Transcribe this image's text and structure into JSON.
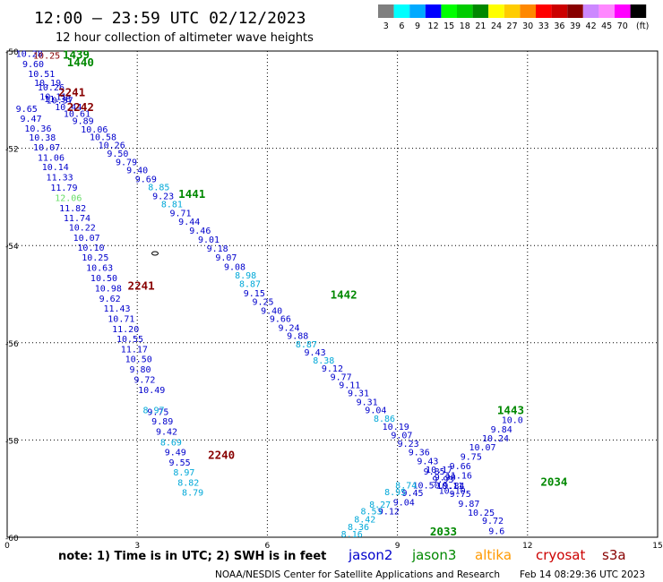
{
  "title": "12:00 – 23:59 UTC 02/12/2023",
  "subtitle": "12 hour collection of altimeter wave heights",
  "legend": {
    "unit": "(ft)",
    "items": [
      {
        "label": "3",
        "color": "#7f7f7f"
      },
      {
        "label": "6",
        "color": "#00ffff"
      },
      {
        "label": "9",
        "color": "#00aaff"
      },
      {
        "label": "12",
        "color": "#0000ff"
      },
      {
        "label": "15",
        "color": "#00ff00"
      },
      {
        "label": "18",
        "color": "#00cc00"
      },
      {
        "label": "21",
        "color": "#008800"
      },
      {
        "label": "24",
        "color": "#ffff00"
      },
      {
        "label": "27",
        "color": "#ffcc00"
      },
      {
        "label": "30",
        "color": "#ff8800"
      },
      {
        "label": "33",
        "color": "#ff0000"
      },
      {
        "label": "36",
        "color": "#cc0000"
      },
      {
        "label": "39",
        "color": "#880000"
      },
      {
        "label": "42",
        "color": "#cc88ff"
      },
      {
        "label": "45",
        "color": "#ff88ff"
      },
      {
        "label": "70",
        "color": "#ff00ff"
      },
      {
        "label": "",
        "color": "#000000"
      }
    ]
  },
  "note": "note: 1) Time is in UTC; 2) SWH is in feet",
  "satellites": [
    {
      "label": "jason2",
      "color": "#0000cc"
    },
    {
      "label": "jason3",
      "color": "#008800"
    },
    {
      "label": "altika",
      "color": "#ff9900"
    },
    {
      "label": "cryosat",
      "color": "#cc0000"
    },
    {
      "label": "s3a",
      "color": "#880000"
    }
  ],
  "footer_left": "NOAA/NESDIS Center for Satellite Applications and Research",
  "footer_right": "Feb 14 08:29:36 UTC 2023",
  "chart_data": {
    "type": "scatter",
    "x_axis": {
      "ticks": [
        0,
        3,
        6,
        9,
        12,
        15
      ],
      "range": [
        0,
        15
      ]
    },
    "y_axis": {
      "ticks": [
        -50,
        -52,
        -54,
        -56,
        -58,
        -60
      ],
      "range": [
        -50,
        -60
      ]
    },
    "grid": true,
    "color_key": {
      "teal": "#00a8d8",
      "light_green": "#66dd66",
      "blue": "#0000cc",
      "green": "#008800",
      "dark_red": "#880000"
    },
    "track_labels": [
      {
        "text": "1439",
        "x": 1.28,
        "y": -50.06,
        "color": "green"
      },
      {
        "text": "1440",
        "x": 1.38,
        "y": -50.22,
        "color": "green"
      },
      {
        "text": "2241",
        "x": 1.18,
        "y": -50.84,
        "color": "dark_red"
      },
      {
        "text": "2242",
        "x": 1.38,
        "y": -51.14,
        "color": "dark_red"
      },
      {
        "text": "1441",
        "x": 3.95,
        "y": -52.93,
        "color": "green"
      },
      {
        "text": "2241",
        "x": 2.78,
        "y": -54.82,
        "color": "dark_red"
      },
      {
        "text": "1442",
        "x": 7.45,
        "y": -55.0,
        "color": "green"
      },
      {
        "text": "1443",
        "x": 11.3,
        "y": -57.38,
        "color": "green"
      },
      {
        "text": "2240",
        "x": 4.63,
        "y": -58.3,
        "color": "dark_red"
      },
      {
        "text": "2034",
        "x": 12.3,
        "y": -58.85,
        "color": "green"
      },
      {
        "text": "2033",
        "x": 9.75,
        "y": -59.87,
        "color": "green"
      }
    ],
    "series": [
      {
        "points": [
          {
            "x": 0.2,
            "y": -50.05,
            "v": "10.28"
          },
          {
            "x": 0.35,
            "y": -50.26,
            "v": "9.60"
          },
          {
            "x": 0.48,
            "y": -50.46,
            "v": "10.51"
          },
          {
            "x": 0.62,
            "y": -50.64,
            "v": "10.19"
          },
          {
            "x": 0.85,
            "y": -50.98,
            "v": "11.38"
          },
          {
            "x": 0.2,
            "y": -51.18,
            "v": "9.65"
          },
          {
            "x": 0.3,
            "y": -51.38,
            "v": "9.47"
          },
          {
            "x": 0.4,
            "y": -51.58,
            "v": "10.36"
          },
          {
            "x": 0.5,
            "y": -51.77,
            "v": "10.38"
          },
          {
            "x": 0.6,
            "y": -51.97,
            "v": "10.07"
          },
          {
            "x": 0.7,
            "y": -52.18,
            "v": "11.06"
          },
          {
            "x": 0.8,
            "y": -52.38,
            "v": "10.14"
          },
          {
            "x": 0.9,
            "y": -52.59,
            "v": "11.33"
          },
          {
            "x": 1.0,
            "y": -52.8,
            "v": "11.79"
          },
          {
            "x": 1.2,
            "y": -53.22,
            "v": "11.82"
          },
          {
            "x": 1.3,
            "y": -53.43,
            "v": "11.74"
          },
          {
            "x": 1.42,
            "y": -53.62,
            "v": "10.22"
          },
          {
            "x": 1.52,
            "y": -53.83,
            "v": "10.07"
          },
          {
            "x": 1.62,
            "y": -54.03,
            "v": "10.10"
          },
          {
            "x": 1.72,
            "y": -54.24,
            "v": "10.25"
          },
          {
            "x": 1.82,
            "y": -54.45,
            "v": "10.63"
          },
          {
            "x": 1.92,
            "y": -54.66,
            "v": "10.50"
          },
          {
            "x": 2.02,
            "y": -54.87,
            "v": "10.98"
          },
          {
            "x": 2.12,
            "y": -55.08,
            "v": "9.62"
          },
          {
            "x": 2.22,
            "y": -55.29,
            "v": "11.43"
          },
          {
            "x": 2.32,
            "y": -55.5,
            "v": "10.71"
          },
          {
            "x": 2.42,
            "y": -55.71,
            "v": "11.20"
          },
          {
            "x": 2.52,
            "y": -55.91,
            "v": "10.55"
          },
          {
            "x": 2.62,
            "y": -56.12,
            "v": "11.17"
          },
          {
            "x": 2.72,
            "y": -56.33,
            "v": "10.50"
          },
          {
            "x": 2.82,
            "y": -56.54,
            "v": "9.80"
          },
          {
            "x": 2.92,
            "y": -56.75,
            "v": "9.72"
          },
          {
            "x": 3.02,
            "y": -56.96,
            "v": "10.49"
          },
          {
            "x": 3.23,
            "y": -57.41,
            "v": "9.75"
          },
          {
            "x": 3.33,
            "y": -57.61,
            "v": "9.89"
          },
          {
            "x": 3.43,
            "y": -57.82,
            "v": "9.42"
          },
          {
            "x": 3.63,
            "y": -58.24,
            "v": "9.49"
          },
          {
            "x": 3.73,
            "y": -58.45,
            "v": "9.55"
          },
          {
            "x": 0.7,
            "y": -50.74,
            "v": "10.26"
          },
          {
            "x": 0.75,
            "y": -50.93,
            "v": "10.11"
          },
          {
            "x": 0.9,
            "y": -51.0,
            "v": "10.37"
          },
          {
            "x": 1.1,
            "y": -51.14,
            "v": "10.44"
          },
          {
            "x": 1.3,
            "y": -51.28,
            "v": "10.61"
          },
          {
            "x": 1.5,
            "y": -51.43,
            "v": "9.89"
          },
          {
            "x": 1.7,
            "y": -51.6,
            "v": "10.06"
          },
          {
            "x": 1.9,
            "y": -51.76,
            "v": "10.58"
          },
          {
            "x": 2.1,
            "y": -51.92,
            "v": "10.26"
          },
          {
            "x": 2.3,
            "y": -52.1,
            "v": "9.50"
          },
          {
            "x": 2.5,
            "y": -52.27,
            "v": "9.79"
          },
          {
            "x": 2.75,
            "y": -52.44,
            "v": "9.40"
          },
          {
            "x": 2.95,
            "y": -52.62,
            "v": "9.69"
          },
          {
            "x": 3.35,
            "y": -52.97,
            "v": "9.23"
          },
          {
            "x": 3.75,
            "y": -53.32,
            "v": "9.71"
          },
          {
            "x": 3.95,
            "y": -53.5,
            "v": "9.44"
          },
          {
            "x": 4.2,
            "y": -53.68,
            "v": "9.46"
          },
          {
            "x": 4.4,
            "y": -53.87,
            "v": "9.01"
          },
          {
            "x": 4.6,
            "y": -54.05,
            "v": "9.18"
          },
          {
            "x": 4.8,
            "y": -54.24,
            "v": "9.07"
          },
          {
            "x": 5.0,
            "y": -54.43,
            "v": "9.08"
          },
          {
            "x": 5.45,
            "y": -54.97,
            "v": "9.15"
          },
          {
            "x": 5.65,
            "y": -55.15,
            "v": "9.25"
          },
          {
            "x": 5.85,
            "y": -55.33,
            "v": "9.40"
          },
          {
            "x": 6.05,
            "y": -55.5,
            "v": "9.66"
          },
          {
            "x": 6.25,
            "y": -55.68,
            "v": "9.24"
          },
          {
            "x": 6.45,
            "y": -55.85,
            "v": "9.88"
          },
          {
            "x": 6.85,
            "y": -56.19,
            "v": "9.43"
          },
          {
            "x": 7.25,
            "y": -56.52,
            "v": "9.12"
          },
          {
            "x": 7.45,
            "y": -56.69,
            "v": "9.77"
          },
          {
            "x": 7.65,
            "y": -56.86,
            "v": "9.11"
          },
          {
            "x": 7.85,
            "y": -57.03,
            "v": "9.31"
          },
          {
            "x": 8.05,
            "y": -57.21,
            "v": "9.31"
          },
          {
            "x": 8.25,
            "y": -57.38,
            "v": "9.04"
          },
          {
            "x": 8.65,
            "y": -57.72,
            "v": "10.19"
          },
          {
            "x": 8.85,
            "y": -57.89,
            "v": "9.07"
          },
          {
            "x": 9.0,
            "y": -58.07,
            "v": "9.23"
          },
          {
            "x": 9.25,
            "y": -58.24,
            "v": "9.36"
          },
          {
            "x": 9.45,
            "y": -58.43,
            "v": "9.43"
          },
          {
            "x": 9.65,
            "y": -58.6,
            "v": "10.17"
          },
          {
            "x": 9.85,
            "y": -58.76,
            "v": "9.90"
          },
          {
            "x": 10.05,
            "y": -58.93,
            "v": "9.84"
          },
          {
            "x": 10.2,
            "y": -59.1,
            "v": "9.75"
          },
          {
            "x": 10.4,
            "y": -59.3,
            "v": "9.87"
          },
          {
            "x": 10.62,
            "y": -59.48,
            "v": "10.25"
          },
          {
            "x": 10.95,
            "y": -59.65,
            "v": "9.72"
          },
          {
            "x": 11.1,
            "y": -59.86,
            "v": "9.6"
          },
          {
            "x": 9.6,
            "y": -58.64,
            "v": "9.85"
          },
          {
            "x": 9.8,
            "y": -58.8,
            "v": "9.93"
          },
          {
            "x": 9.9,
            "y": -58.93,
            "v": "10.11"
          },
          {
            "x": 9.95,
            "y": -59.03,
            "v": "10.10"
          },
          {
            "x": 10.1,
            "y": -58.72,
            "v": "11.16"
          },
          {
            "x": 10.2,
            "y": -58.53,
            "v": "9.66"
          },
          {
            "x": 10.45,
            "y": -58.33,
            "v": "9.75"
          },
          {
            "x": 10.65,
            "y": -58.14,
            "v": "10.07"
          },
          {
            "x": 10.95,
            "y": -57.96,
            "v": "10.24"
          },
          {
            "x": 11.15,
            "y": -57.77,
            "v": "9.84"
          },
          {
            "x": 11.4,
            "y": -57.58,
            "v": "10.0"
          },
          {
            "x": 9.35,
            "y": -58.92,
            "v": "10.50"
          },
          {
            "x": 9.1,
            "y": -59.08,
            "v": "9.45"
          },
          {
            "x": 8.9,
            "y": -59.27,
            "v": "9.04"
          },
          {
            "x": 8.55,
            "y": -59.46,
            "v": "9.12"
          }
        ]
      },
      {
        "points": [
          {
            "x": 0.6,
            "y": -50.08,
            "v": "10.25"
          }
        ]
      },
      {
        "points": [
          {
            "x": 3.25,
            "y": -52.79,
            "v": "8.85"
          },
          {
            "x": 3.55,
            "y": -53.14,
            "v": "8.81"
          },
          {
            "x": 5.25,
            "y": -54.6,
            "v": "8.98"
          },
          {
            "x": 5.35,
            "y": -54.78,
            "v": "8.87"
          },
          {
            "x": 6.65,
            "y": -56.02,
            "v": "8.87"
          },
          {
            "x": 7.05,
            "y": -56.35,
            "v": "8.38"
          },
          {
            "x": 8.45,
            "y": -57.55,
            "v": "8.86"
          },
          {
            "x": 3.13,
            "y": -57.38,
            "v": "8.97"
          },
          {
            "x": 3.53,
            "y": -58.04,
            "v": "8.69"
          },
          {
            "x": 3.83,
            "y": -58.66,
            "v": "8.97"
          },
          {
            "x": 3.93,
            "y": -58.87,
            "v": "8.82"
          },
          {
            "x": 4.03,
            "y": -59.07,
            "v": "8.79"
          },
          {
            "x": 7.7,
            "y": -59.93,
            "v": "8.16"
          },
          {
            "x": 7.85,
            "y": -59.78,
            "v": "8.36"
          },
          {
            "x": 8.0,
            "y": -59.62,
            "v": "8.42"
          },
          {
            "x": 8.15,
            "y": -59.46,
            "v": "8.53"
          },
          {
            "x": 8.35,
            "y": -59.32,
            "v": "8.27"
          },
          {
            "x": 8.7,
            "y": -59.06,
            "v": "8.95"
          },
          {
            "x": 8.95,
            "y": -58.92,
            "v": "8.74"
          }
        ]
      },
      {
        "points": [
          {
            "x": 1.1,
            "y": -53.01,
            "v": "12.06"
          }
        ]
      }
    ]
  }
}
